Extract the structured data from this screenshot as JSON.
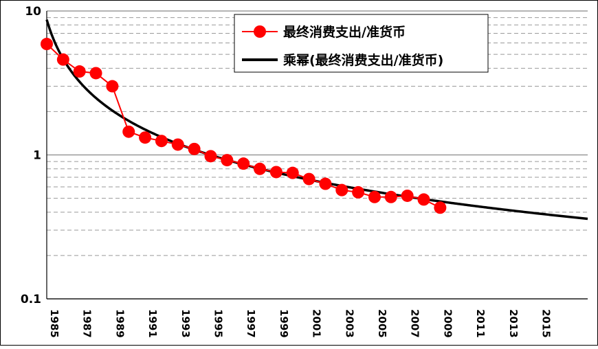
{
  "chart_data": {
    "type": "line",
    "title": "",
    "xlabel": "",
    "ylabel": "",
    "y_scale": "log",
    "ylim": [
      0.1,
      10
    ],
    "y_ticks": [
      "10",
      "1",
      "0.1"
    ],
    "x_ticks": [
      "1985",
      "1987",
      "1989",
      "1991",
      "1993",
      "1995",
      "1997",
      "1999",
      "2001",
      "2003",
      "2005",
      "2007",
      "2009",
      "2011",
      "2013",
      "2015"
    ],
    "xlim": [
      1985,
      2018
    ],
    "grid": {
      "major_y": true,
      "minor_y": true,
      "minor_style": "dashed"
    },
    "legend": {
      "placement": "top-right",
      "frame": true
    },
    "series": [
      {
        "name": "最终消费支出/准货币",
        "kind": "line-marker",
        "color": "#ff0000",
        "x": [
          1985,
          1986,
          1987,
          1988,
          1989,
          1990,
          1991,
          1992,
          1993,
          1994,
          1995,
          1996,
          1997,
          1998,
          1999,
          2000,
          2001,
          2002,
          2003,
          2004,
          2005,
          2006,
          2007,
          2008,
          2009
        ],
        "values": [
          5.9,
          4.6,
          3.8,
          3.7,
          3.0,
          1.45,
          1.32,
          1.25,
          1.18,
          1.1,
          0.98,
          0.92,
          0.87,
          0.8,
          0.76,
          0.75,
          0.68,
          0.63,
          0.57,
          0.55,
          0.51,
          0.51,
          0.52,
          0.49,
          0.43
        ]
      },
      {
        "name": "乘幂(最终消费支出/准货币)",
        "kind": "trendline-power",
        "color": "#000000",
        "x_start": 1985,
        "x_end": 2018,
        "at_1985": 8.7,
        "at_2018": 0.36
      }
    ]
  }
}
